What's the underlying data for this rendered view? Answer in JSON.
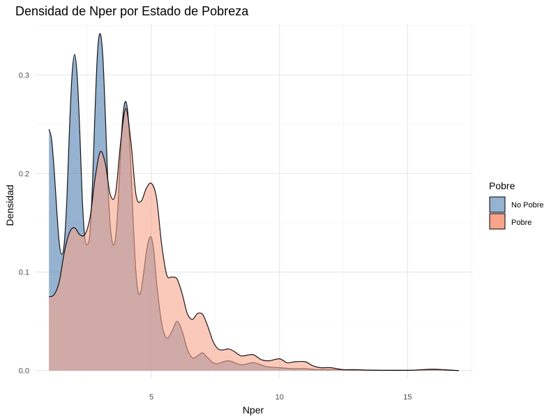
{
  "chart_data": {
    "type": "area",
    "title": "Densidad de Nper por Estado de Pobreza",
    "xlabel": "Nper",
    "ylabel": "Densidad",
    "xlim": [
      0.45,
      17.55
    ],
    "ylim": [
      -0.008,
      0.352
    ],
    "x_ticks": [
      5,
      10,
      15
    ],
    "y_ticks": [
      0.0,
      0.1,
      0.2,
      0.3
    ],
    "y_tick_labels": [
      "0.0",
      "0.1",
      "0.2",
      "0.3"
    ],
    "grid": true,
    "legend": {
      "title": "Pobre",
      "position": "right"
    },
    "series": [
      {
        "name": "No Pobre",
        "fill": "#4f7fb0",
        "points": [
          [
            1.0,
            0.245
          ],
          [
            1.1,
            0.235
          ],
          [
            1.2,
            0.205
          ],
          [
            1.3,
            0.165
          ],
          [
            1.4,
            0.13
          ],
          [
            1.5,
            0.118
          ],
          [
            1.6,
            0.13
          ],
          [
            1.7,
            0.175
          ],
          [
            1.8,
            0.245
          ],
          [
            1.9,
            0.3
          ],
          [
            2.0,
            0.321
          ],
          [
            2.1,
            0.3
          ],
          [
            2.2,
            0.245
          ],
          [
            2.3,
            0.175
          ],
          [
            2.4,
            0.135
          ],
          [
            2.5,
            0.128
          ],
          [
            2.6,
            0.14
          ],
          [
            2.7,
            0.19
          ],
          [
            2.8,
            0.265
          ],
          [
            2.9,
            0.325
          ],
          [
            3.0,
            0.342
          ],
          [
            3.1,
            0.32
          ],
          [
            3.2,
            0.26
          ],
          [
            3.3,
            0.19
          ],
          [
            3.4,
            0.145
          ],
          [
            3.5,
            0.128
          ],
          [
            3.6,
            0.135
          ],
          [
            3.7,
            0.17
          ],
          [
            3.8,
            0.225
          ],
          [
            3.9,
            0.262
          ],
          [
            4.0,
            0.273
          ],
          [
            4.1,
            0.255
          ],
          [
            4.2,
            0.205
          ],
          [
            4.3,
            0.145
          ],
          [
            4.4,
            0.098
          ],
          [
            4.5,
            0.078
          ],
          [
            4.6,
            0.082
          ],
          [
            4.7,
            0.1
          ],
          [
            4.8,
            0.12
          ],
          [
            4.9,
            0.133
          ],
          [
            5.0,
            0.135
          ],
          [
            5.1,
            0.12
          ],
          [
            5.2,
            0.09
          ],
          [
            5.4,
            0.048
          ],
          [
            5.6,
            0.033
          ],
          [
            5.8,
            0.04
          ],
          [
            6.0,
            0.05
          ],
          [
            6.2,
            0.04
          ],
          [
            6.4,
            0.022
          ],
          [
            6.6,
            0.013
          ],
          [
            6.8,
            0.015
          ],
          [
            7.0,
            0.018
          ],
          [
            7.2,
            0.013
          ],
          [
            7.5,
            0.007
          ],
          [
            8.0,
            0.01
          ],
          [
            8.5,
            0.006
          ],
          [
            9.0,
            0.008
          ],
          [
            9.5,
            0.004
          ],
          [
            10.0,
            0.003
          ],
          [
            10.5,
            0.002
          ],
          [
            11.0,
            0.002
          ],
          [
            11.5,
            0.001
          ],
          [
            12.0,
            0.001
          ],
          [
            13.0,
            0.0005
          ],
          [
            14.0,
            0.0003
          ],
          [
            15.0,
            0.0003
          ],
          [
            16.0,
            0.0008
          ],
          [
            17.0,
            0.0
          ]
        ]
      },
      {
        "name": "Pobre",
        "fill": "#f8a58c",
        "points": [
          [
            1.0,
            0.075
          ],
          [
            1.2,
            0.077
          ],
          [
            1.4,
            0.09
          ],
          [
            1.6,
            0.12
          ],
          [
            1.8,
            0.14
          ],
          [
            2.0,
            0.145
          ],
          [
            2.2,
            0.138
          ],
          [
            2.4,
            0.138
          ],
          [
            2.6,
            0.155
          ],
          [
            2.8,
            0.195
          ],
          [
            3.0,
            0.222
          ],
          [
            3.2,
            0.21
          ],
          [
            3.4,
            0.178
          ],
          [
            3.6,
            0.18
          ],
          [
            3.8,
            0.232
          ],
          [
            4.0,
            0.266
          ],
          [
            4.2,
            0.232
          ],
          [
            4.4,
            0.178
          ],
          [
            4.6,
            0.172
          ],
          [
            4.8,
            0.185
          ],
          [
            5.0,
            0.19
          ],
          [
            5.2,
            0.175
          ],
          [
            5.4,
            0.128
          ],
          [
            5.6,
            0.097
          ],
          [
            5.8,
            0.095
          ],
          [
            6.0,
            0.093
          ],
          [
            6.2,
            0.078
          ],
          [
            6.4,
            0.058
          ],
          [
            6.6,
            0.052
          ],
          [
            6.8,
            0.058
          ],
          [
            7.0,
            0.057
          ],
          [
            7.2,
            0.045
          ],
          [
            7.4,
            0.03
          ],
          [
            7.6,
            0.022
          ],
          [
            7.8,
            0.021
          ],
          [
            8.0,
            0.022
          ],
          [
            8.2,
            0.02
          ],
          [
            8.5,
            0.015
          ],
          [
            8.8,
            0.016
          ],
          [
            9.0,
            0.016
          ],
          [
            9.3,
            0.011
          ],
          [
            9.6,
            0.01
          ],
          [
            10.0,
            0.012
          ],
          [
            10.3,
            0.008
          ],
          [
            10.6,
            0.009
          ],
          [
            11.0,
            0.009
          ],
          [
            11.3,
            0.005
          ],
          [
            11.6,
            0.003
          ],
          [
            12.0,
            0.003
          ],
          [
            12.5,
            0.001
          ],
          [
            13.0,
            0.001
          ],
          [
            13.5,
            0.0005
          ],
          [
            14.0,
            0.0003
          ],
          [
            15.0,
            0.0003
          ],
          [
            15.5,
            0.0008
          ],
          [
            16.0,
            0.0015
          ],
          [
            16.5,
            0.0008
          ],
          [
            17.0,
            0.0
          ]
        ]
      }
    ]
  }
}
